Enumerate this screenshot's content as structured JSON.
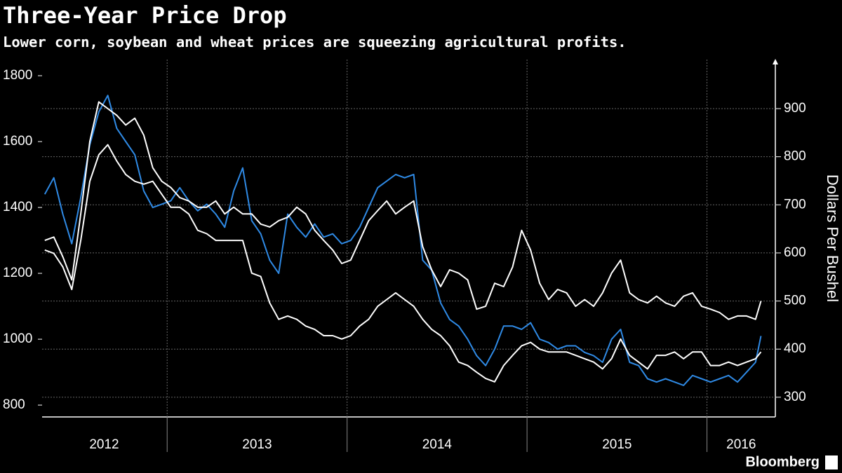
{
  "chart_data": {
    "type": "line",
    "title": "Three-Year Price Drop",
    "subtitle": "Lower corn, soybean and wheat prices are squeezing agricultural profits.",
    "y2label": "Dollars Per Bushel",
    "source": "Bloomberg",
    "x": [
      2012.32,
      2012.37,
      2012.42,
      2012.47,
      2012.52,
      2012.57,
      2012.62,
      2012.67,
      2012.72,
      2012.77,
      2012.82,
      2012.87,
      2012.92,
      2012.97,
      2013.02,
      2013.07,
      2013.12,
      2013.17,
      2013.22,
      2013.27,
      2013.32,
      2013.37,
      2013.42,
      2013.47,
      2013.52,
      2013.57,
      2013.62,
      2013.67,
      2013.72,
      2013.77,
      2013.82,
      2013.87,
      2013.92,
      2013.97,
      2014.02,
      2014.07,
      2014.12,
      2014.17,
      2014.22,
      2014.27,
      2014.32,
      2014.37,
      2014.42,
      2014.47,
      2014.52,
      2014.57,
      2014.62,
      2014.67,
      2014.72,
      2014.77,
      2014.82,
      2014.87,
      2014.92,
      2014.97,
      2015.02,
      2015.07,
      2015.12,
      2015.17,
      2015.22,
      2015.27,
      2015.32,
      2015.37,
      2015.42,
      2015.47,
      2015.52,
      2015.57,
      2015.62,
      2015.67,
      2015.72,
      2015.77,
      2015.82,
      2015.87,
      2015.92,
      2015.97,
      2016.02,
      2016.07,
      2016.12,
      2016.17,
      2016.22,
      2016.27,
      2016.3
    ],
    "series": [
      {
        "color": "#2f8ae5",
        "axis": "y",
        "values": [
          1440,
          1490,
          1380,
          1290,
          1430,
          1590,
          1690,
          1740,
          1640,
          1600,
          1560,
          1450,
          1400,
          1410,
          1420,
          1460,
          1420,
          1390,
          1410,
          1380,
          1340,
          1450,
          1520,
          1360,
          1320,
          1240,
          1200,
          1380,
          1340,
          1310,
          1350,
          1310,
          1320,
          1290,
          1300,
          1340,
          1400,
          1460,
          1480,
          1500,
          1490,
          1500,
          1240,
          1210,
          1110,
          1060,
          1040,
          1000,
          950,
          920,
          970,
          1040,
          1040,
          1030,
          1050,
          1000,
          990,
          970,
          980,
          980,
          960,
          950,
          930,
          1000,
          1030,
          930,
          920,
          880,
          870,
          880,
          870,
          860,
          890,
          880,
          870,
          880,
          890,
          870,
          900,
          930,
          1010
        ]
      },
      {
        "color": "#ffffff",
        "axis": "y2",
        "values": [
          626,
          633,
          592,
          544,
          681,
          832,
          914,
          900,
          886,
          866,
          880,
          845,
          777,
          749,
          736,
          715,
          708,
          695,
          695,
          708,
          681,
          695,
          681,
          681,
          660,
          654,
          667,
          674,
          695,
          681,
          647,
          626,
          606,
          578,
          585,
          626,
          667,
          688,
          708,
          681,
          695,
          708,
          613,
          565,
          530,
          565,
          558,
          544,
          483,
          489,
          537,
          530,
          571,
          647,
          606,
          537,
          503,
          524,
          517,
          489,
          503,
          489,
          517,
          558,
          585,
          517,
          503,
          496,
          510,
          496,
          489,
          510,
          517,
          489,
          483,
          476,
          462,
          469,
          469,
          462,
          500
        ]
      },
      {
        "color": "#ffffff",
        "axis": "y2",
        "values": [
          606,
          599,
          571,
          524,
          626,
          749,
          804,
          825,
          791,
          763,
          749,
          743,
          749,
          722,
          695,
          695,
          681,
          647,
          640,
          626,
          626,
          626,
          626,
          558,
          551,
          496,
          462,
          469,
          462,
          448,
          441,
          428,
          428,
          421,
          428,
          448,
          462,
          489,
          503,
          517,
          503,
          489,
          462,
          441,
          428,
          407,
          373,
          366,
          352,
          339,
          332,
          366,
          387,
          407,
          414,
          400,
          394,
          394,
          394,
          387,
          380,
          373,
          359,
          380,
          421,
          387,
          373,
          359,
          387,
          387,
          394,
          380,
          394,
          394,
          366,
          366,
          373,
          366,
          373,
          380,
          394
        ]
      }
    ],
    "xlim": [
      2012.305,
      2016.38
    ],
    "xticks": [
      2013,
      2014,
      2015,
      2016
    ],
    "xlabels": [
      {
        "value": 2012.65,
        "label": "2012"
      },
      {
        "value": 2013.5,
        "label": "2013"
      },
      {
        "value": 2014.5,
        "label": "2014"
      },
      {
        "value": 2015.5,
        "label": "2015"
      },
      {
        "value": 2016.19,
        "label": "2016"
      }
    ],
    "ylim": [
      764,
      1849
    ],
    "yticks": [
      800,
      1000,
      1200,
      1400,
      1600,
      1800
    ],
    "y2lim": [
      259,
      1002
    ],
    "y2ticks": [
      300,
      400,
      500,
      600,
      700,
      800,
      900
    ],
    "grid": true
  }
}
